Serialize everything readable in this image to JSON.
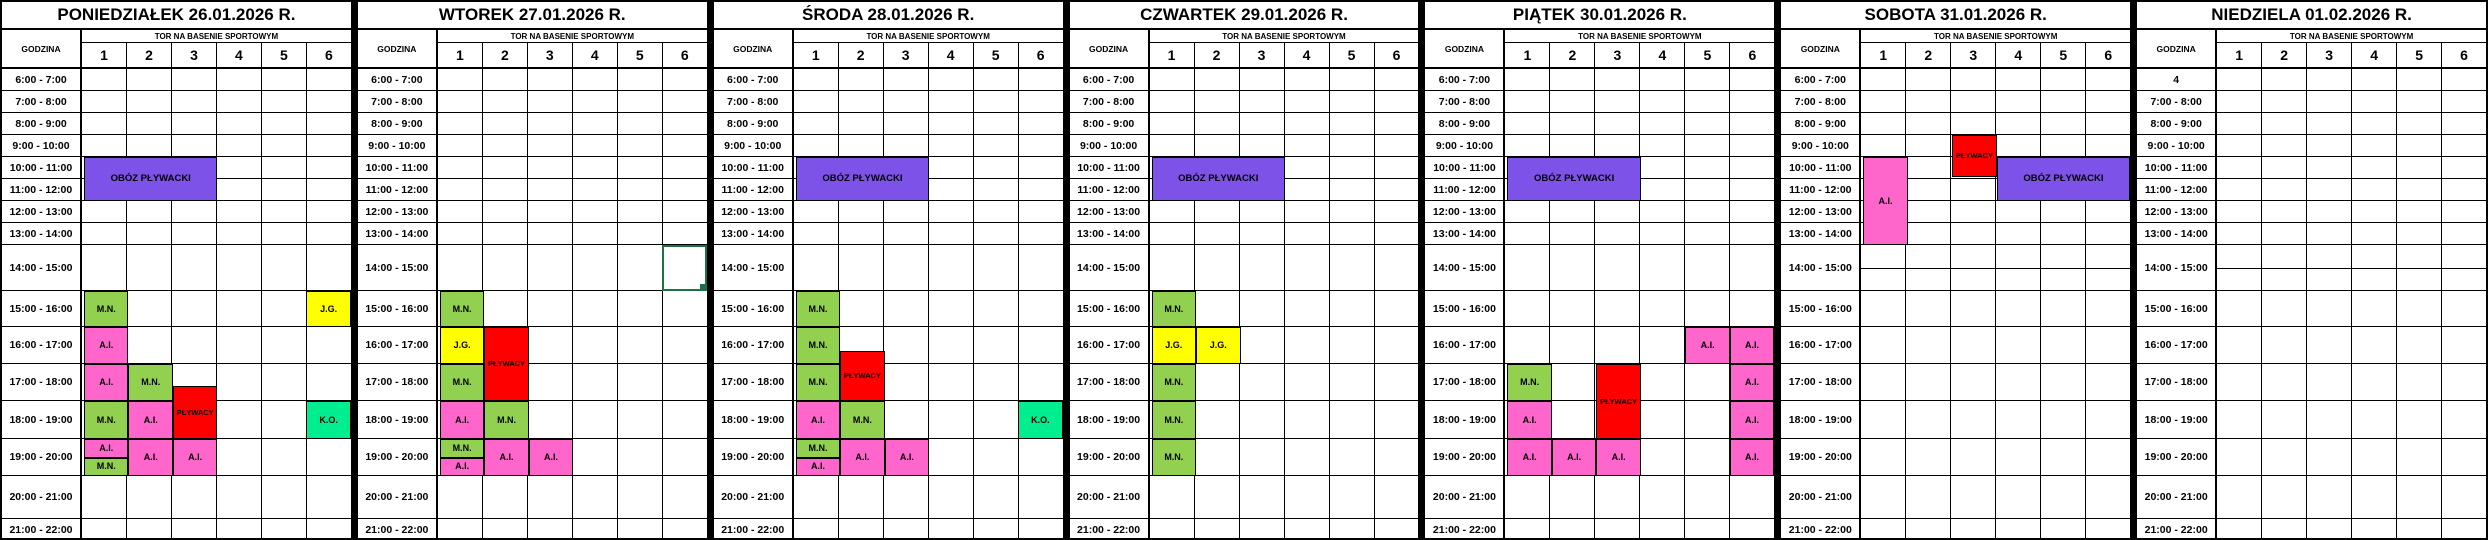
{
  "table": {
    "hour_header": "GODZINA",
    "lane_header": "TOR NA BASENIE SPORTOWYM",
    "lane_numbers": [
      "1",
      "2",
      "3",
      "4",
      "5",
      "6"
    ],
    "time_rows": [
      "6:00 - 7:00",
      "7:00 - 8:00",
      "8:00 - 9:00",
      "9:00 - 10:00",
      "10:00 - 11:00",
      "11:00 - 12:00",
      "12:00 - 13:00",
      "13:00 - 14:00",
      "14:00 - 15:00",
      "15:00 - 16:00",
      "16:00 - 17:00",
      "17:00 - 18:00",
      "18:00 - 19:00",
      "19:00 - 20:00",
      "20:00 - 21:00",
      "21:00 - 22:00"
    ],
    "colors": {
      "purple": "#7D52E8",
      "green": "#92D050",
      "pink": "#FF66CC",
      "yellow": "#FFFF00",
      "red": "#FF0000",
      "teal": "#00EE8F",
      "selection": "#1E7145"
    },
    "days": [
      {
        "title": "PONIEDZIAŁEK 26.01.2026 R.",
        "events": [
          {
            "lane_from": 1,
            "lane_to": 3,
            "from": 10,
            "to": 12,
            "label": "OBÓZ PŁYWACKI",
            "color": "purple"
          },
          {
            "lane_from": 1,
            "lane_to": 1,
            "from": 15,
            "to": 16,
            "label": "M.N.",
            "color": "green"
          },
          {
            "lane_from": 6,
            "lane_to": 6,
            "from": 15,
            "to": 16,
            "label": "J.G.",
            "color": "yellow"
          },
          {
            "lane_from": 1,
            "lane_to": 1,
            "from": 16,
            "to": 17,
            "label": "A.I.",
            "color": "pink"
          },
          {
            "lane_from": 1,
            "lane_to": 1,
            "from": 17,
            "to": 18,
            "label": "A.I.",
            "color": "pink"
          },
          {
            "lane_from": 2,
            "lane_to": 2,
            "from": 17,
            "to": 18,
            "label": "M.N.",
            "color": "green"
          },
          {
            "lane_from": 3,
            "lane_to": 3,
            "from": 17.6,
            "to": 19,
            "label": "PŁYWACY",
            "color": "red"
          },
          {
            "lane_from": 1,
            "lane_to": 1,
            "from": 18,
            "to": 19,
            "label": "M.N.",
            "color": "green"
          },
          {
            "lane_from": 2,
            "lane_to": 2,
            "from": 18,
            "to": 19,
            "label": "A.I.",
            "color": "pink"
          },
          {
            "lane_from": 6,
            "lane_to": 6,
            "from": 18,
            "to": 19,
            "label": "K.O.",
            "color": "teal"
          },
          {
            "lane_from": 1,
            "lane_to": 1,
            "from": 19,
            "to": 19.5,
            "label": "A.I.",
            "color": "pink"
          },
          {
            "lane_from": 1,
            "lane_to": 1,
            "from": 19.5,
            "to": 20,
            "label": "M.N.",
            "color": "green"
          },
          {
            "lane_from": 2,
            "lane_to": 2,
            "from": 19,
            "to": 20,
            "label": "A.I.",
            "color": "pink"
          },
          {
            "lane_from": 3,
            "lane_to": 3,
            "from": 19,
            "to": 20,
            "label": "A.I.",
            "color": "pink"
          }
        ]
      },
      {
        "title": "WTOREK 27.01.2026 R.",
        "events": [
          {
            "lane_from": 6,
            "lane_to": 6,
            "from": 14,
            "to": 15,
            "label": "",
            "color": "selection",
            "type": "selection"
          },
          {
            "lane_from": 1,
            "lane_to": 1,
            "from": 15,
            "to": 16,
            "label": "M.N.",
            "color": "green"
          },
          {
            "lane_from": 1,
            "lane_to": 1,
            "from": 16,
            "to": 17,
            "label": "J.G.",
            "color": "yellow"
          },
          {
            "lane_from": 2,
            "lane_to": 2,
            "from": 16,
            "to": 18,
            "label": "PŁYWACY",
            "color": "red"
          },
          {
            "lane_from": 1,
            "lane_to": 1,
            "from": 17,
            "to": 18,
            "label": "M.N.",
            "color": "green"
          },
          {
            "lane_from": 1,
            "lane_to": 1,
            "from": 18,
            "to": 19,
            "label": "A.I.",
            "color": "pink"
          },
          {
            "lane_from": 2,
            "lane_to": 2,
            "from": 18,
            "to": 19,
            "label": "M.N.",
            "color": "green"
          },
          {
            "lane_from": 1,
            "lane_to": 1,
            "from": 19,
            "to": 19.5,
            "label": "M.N.",
            "color": "green"
          },
          {
            "lane_from": 1,
            "lane_to": 1,
            "from": 19.5,
            "to": 20,
            "label": "A.I.",
            "color": "pink"
          },
          {
            "lane_from": 2,
            "lane_to": 2,
            "from": 19,
            "to": 20,
            "label": "A.I.",
            "color": "pink"
          },
          {
            "lane_from": 3,
            "lane_to": 3,
            "from": 19,
            "to": 20,
            "label": "A.I.",
            "color": "pink"
          }
        ]
      },
      {
        "title": "ŚRODA 28.01.2026 R.",
        "events": [
          {
            "lane_from": 1,
            "lane_to": 3,
            "from": 10,
            "to": 12,
            "label": "OBÓZ PŁYWACKI",
            "color": "purple"
          },
          {
            "lane_from": 1,
            "lane_to": 1,
            "from": 15,
            "to": 16,
            "label": "M.N.",
            "color": "green"
          },
          {
            "lane_from": 1,
            "lane_to": 1,
            "from": 16,
            "to": 17,
            "label": "M.N.",
            "color": "green"
          },
          {
            "lane_from": 2,
            "lane_to": 2,
            "from": 16.65,
            "to": 18,
            "label": "PŁYWACY",
            "color": "red"
          },
          {
            "lane_from": 1,
            "lane_to": 1,
            "from": 17,
            "to": 18,
            "label": "M.N.",
            "color": "green"
          },
          {
            "lane_from": 1,
            "lane_to": 1,
            "from": 18,
            "to": 19,
            "label": "A.I.",
            "color": "pink"
          },
          {
            "lane_from": 2,
            "lane_to": 2,
            "from": 18,
            "to": 19,
            "label": "M.N.",
            "color": "green"
          },
          {
            "lane_from": 6,
            "lane_to": 6,
            "from": 18,
            "to": 19,
            "label": "K.O.",
            "color": "teal"
          },
          {
            "lane_from": 1,
            "lane_to": 1,
            "from": 19,
            "to": 19.5,
            "label": "M.N.",
            "color": "green"
          },
          {
            "lane_from": 1,
            "lane_to": 1,
            "from": 19.5,
            "to": 20,
            "label": "A.I.",
            "color": "pink"
          },
          {
            "lane_from": 2,
            "lane_to": 2,
            "from": 19,
            "to": 20,
            "label": "A.I.",
            "color": "pink"
          },
          {
            "lane_from": 3,
            "lane_to": 3,
            "from": 19,
            "to": 20,
            "label": "A.I.",
            "color": "pink"
          }
        ]
      },
      {
        "title": "CZWARTEK 29.01.2026 R.",
        "events": [
          {
            "lane_from": 1,
            "lane_to": 3,
            "from": 10,
            "to": 12,
            "label": "OBÓZ PŁYWACKI",
            "color": "purple"
          },
          {
            "lane_from": 1,
            "lane_to": 1,
            "from": 15,
            "to": 16,
            "label": "M.N.",
            "color": "green"
          },
          {
            "lane_from": 1,
            "lane_to": 1,
            "from": 16,
            "to": 17,
            "label": "J.G.",
            "color": "yellow"
          },
          {
            "lane_from": 2,
            "lane_to": 2,
            "from": 16,
            "to": 17,
            "label": "J.G.",
            "color": "yellow"
          },
          {
            "lane_from": 1,
            "lane_to": 1,
            "from": 17,
            "to": 18,
            "label": "M.N.",
            "color": "green"
          },
          {
            "lane_from": 1,
            "lane_to": 1,
            "from": 18,
            "to": 19,
            "label": "M.N.",
            "color": "green"
          },
          {
            "lane_from": 1,
            "lane_to": 1,
            "from": 19,
            "to": 20,
            "label": "M.N.",
            "color": "green"
          }
        ]
      },
      {
        "title": "PIĄTEK 30.01.2026 R.",
        "events": [
          {
            "lane_from": 1,
            "lane_to": 3,
            "from": 10,
            "to": 12,
            "label": "OBÓZ PŁYWACKI",
            "color": "purple"
          },
          {
            "lane_from": 5,
            "lane_to": 5,
            "from": 16,
            "to": 17,
            "label": "A.I.",
            "color": "pink"
          },
          {
            "lane_from": 6,
            "lane_to": 6,
            "from": 16,
            "to": 17,
            "label": "A.I.",
            "color": "pink"
          },
          {
            "lane_from": 1,
            "lane_to": 1,
            "from": 17,
            "to": 18,
            "label": "M.N.",
            "color": "green"
          },
          {
            "lane_from": 3,
            "lane_to": 3,
            "from": 17,
            "to": 19,
            "label": "PŁYWACY",
            "color": "red"
          },
          {
            "lane_from": 6,
            "lane_to": 6,
            "from": 17,
            "to": 18,
            "label": "A.I.",
            "color": "pink"
          },
          {
            "lane_from": 1,
            "lane_to": 1,
            "from": 18,
            "to": 19,
            "label": "A.I.",
            "color": "pink"
          },
          {
            "lane_from": 6,
            "lane_to": 6,
            "from": 18,
            "to": 19,
            "label": "A.I.",
            "color": "pink"
          },
          {
            "lane_from": 1,
            "lane_to": 1,
            "from": 19,
            "to": 20,
            "label": "A.I.",
            "color": "pink"
          },
          {
            "lane_from": 2,
            "lane_to": 2,
            "from": 19,
            "to": 20,
            "label": "A.I.",
            "color": "pink"
          },
          {
            "lane_from": 3,
            "lane_to": 3,
            "from": 19,
            "to": 20,
            "label": "A.I.",
            "color": "pink"
          },
          {
            "lane_from": 6,
            "lane_to": 6,
            "from": 19,
            "to": 20,
            "label": "A.I.",
            "color": "pink"
          }
        ]
      },
      {
        "title": "SOBOTA 31.01.2026 R.",
        "half_line_14": true,
        "events": [
          {
            "lane_from": 3,
            "lane_to": 3,
            "from": 9,
            "to": 10.9,
            "label": "PŁYWACY",
            "color": "red"
          },
          {
            "lane_from": 1,
            "lane_to": 1,
            "from": 10,
            "to": 14,
            "label": "A.I.",
            "color": "pink"
          },
          {
            "lane_from": 4,
            "lane_to": 6,
            "from": 10,
            "to": 12,
            "label": "OBÓZ PŁYWACKI",
            "color": "purple"
          }
        ]
      },
      {
        "title": "NIEDZIELA 01.02.2026 R.",
        "half_line_14": true,
        "time_overrides": {
          "0": "4"
        },
        "events": []
      }
    ]
  }
}
